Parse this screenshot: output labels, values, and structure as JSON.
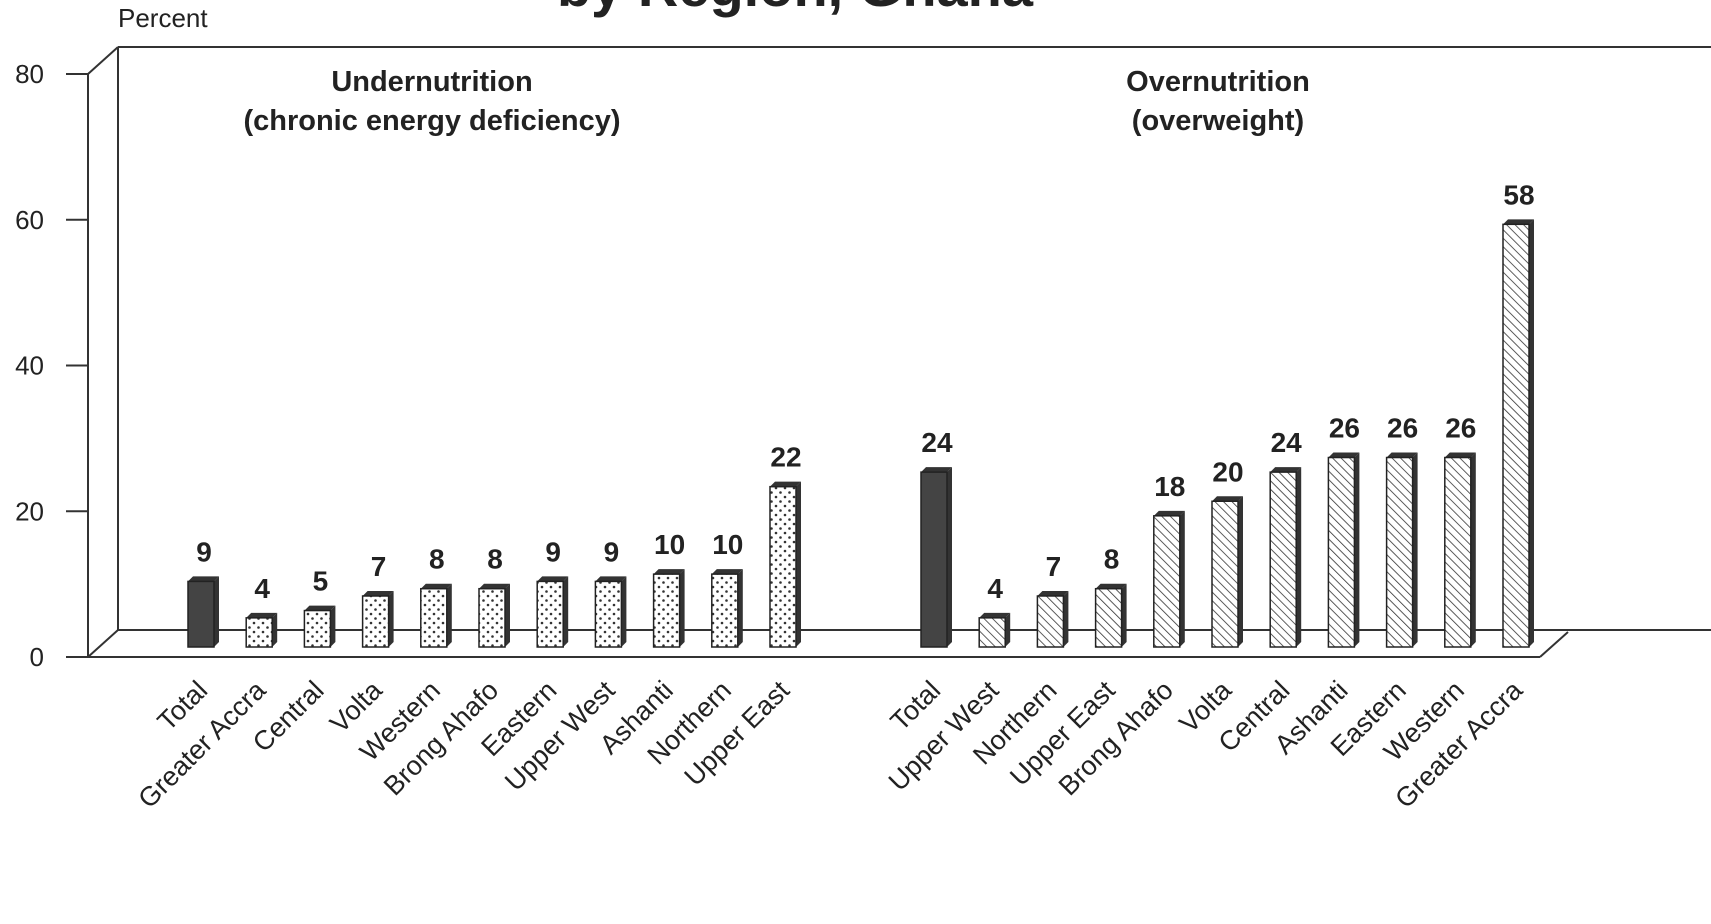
{
  "chart_data": {
    "type": "bar",
    "title": "by Region, Ghana",
    "y_label": "Percent",
    "ylim": [
      0,
      80
    ],
    "yticks": [
      0,
      20,
      40,
      60,
      80
    ],
    "groups": [
      {
        "title": [
          "Undernutrition",
          "(chronic energy deficiency)"
        ],
        "pattern": "dots",
        "highlight_color": "#444444",
        "categories": [
          "Total",
          "Greater Accra",
          "Central",
          "Volta",
          "Western",
          "Brong Ahafo",
          "Eastern",
          "Upper West",
          "Ashanti",
          "Northern",
          "Upper East"
        ],
        "values": [
          9,
          4,
          5,
          7,
          8,
          8,
          9,
          9,
          10,
          10,
          22
        ]
      },
      {
        "title": [
          "Overnutrition",
          "(overweight)"
        ],
        "pattern": "hatch",
        "highlight_color": "#444444",
        "categories": [
          "Total",
          "Upper West",
          "Northern",
          "Upper East",
          "Brong Ahafo",
          "Volta",
          "Central",
          "Ashanti",
          "Eastern",
          "Western",
          "Greater Accra"
        ],
        "values": [
          24,
          4,
          7,
          8,
          18,
          20,
          24,
          26,
          26,
          26,
          58
        ]
      }
    ]
  }
}
